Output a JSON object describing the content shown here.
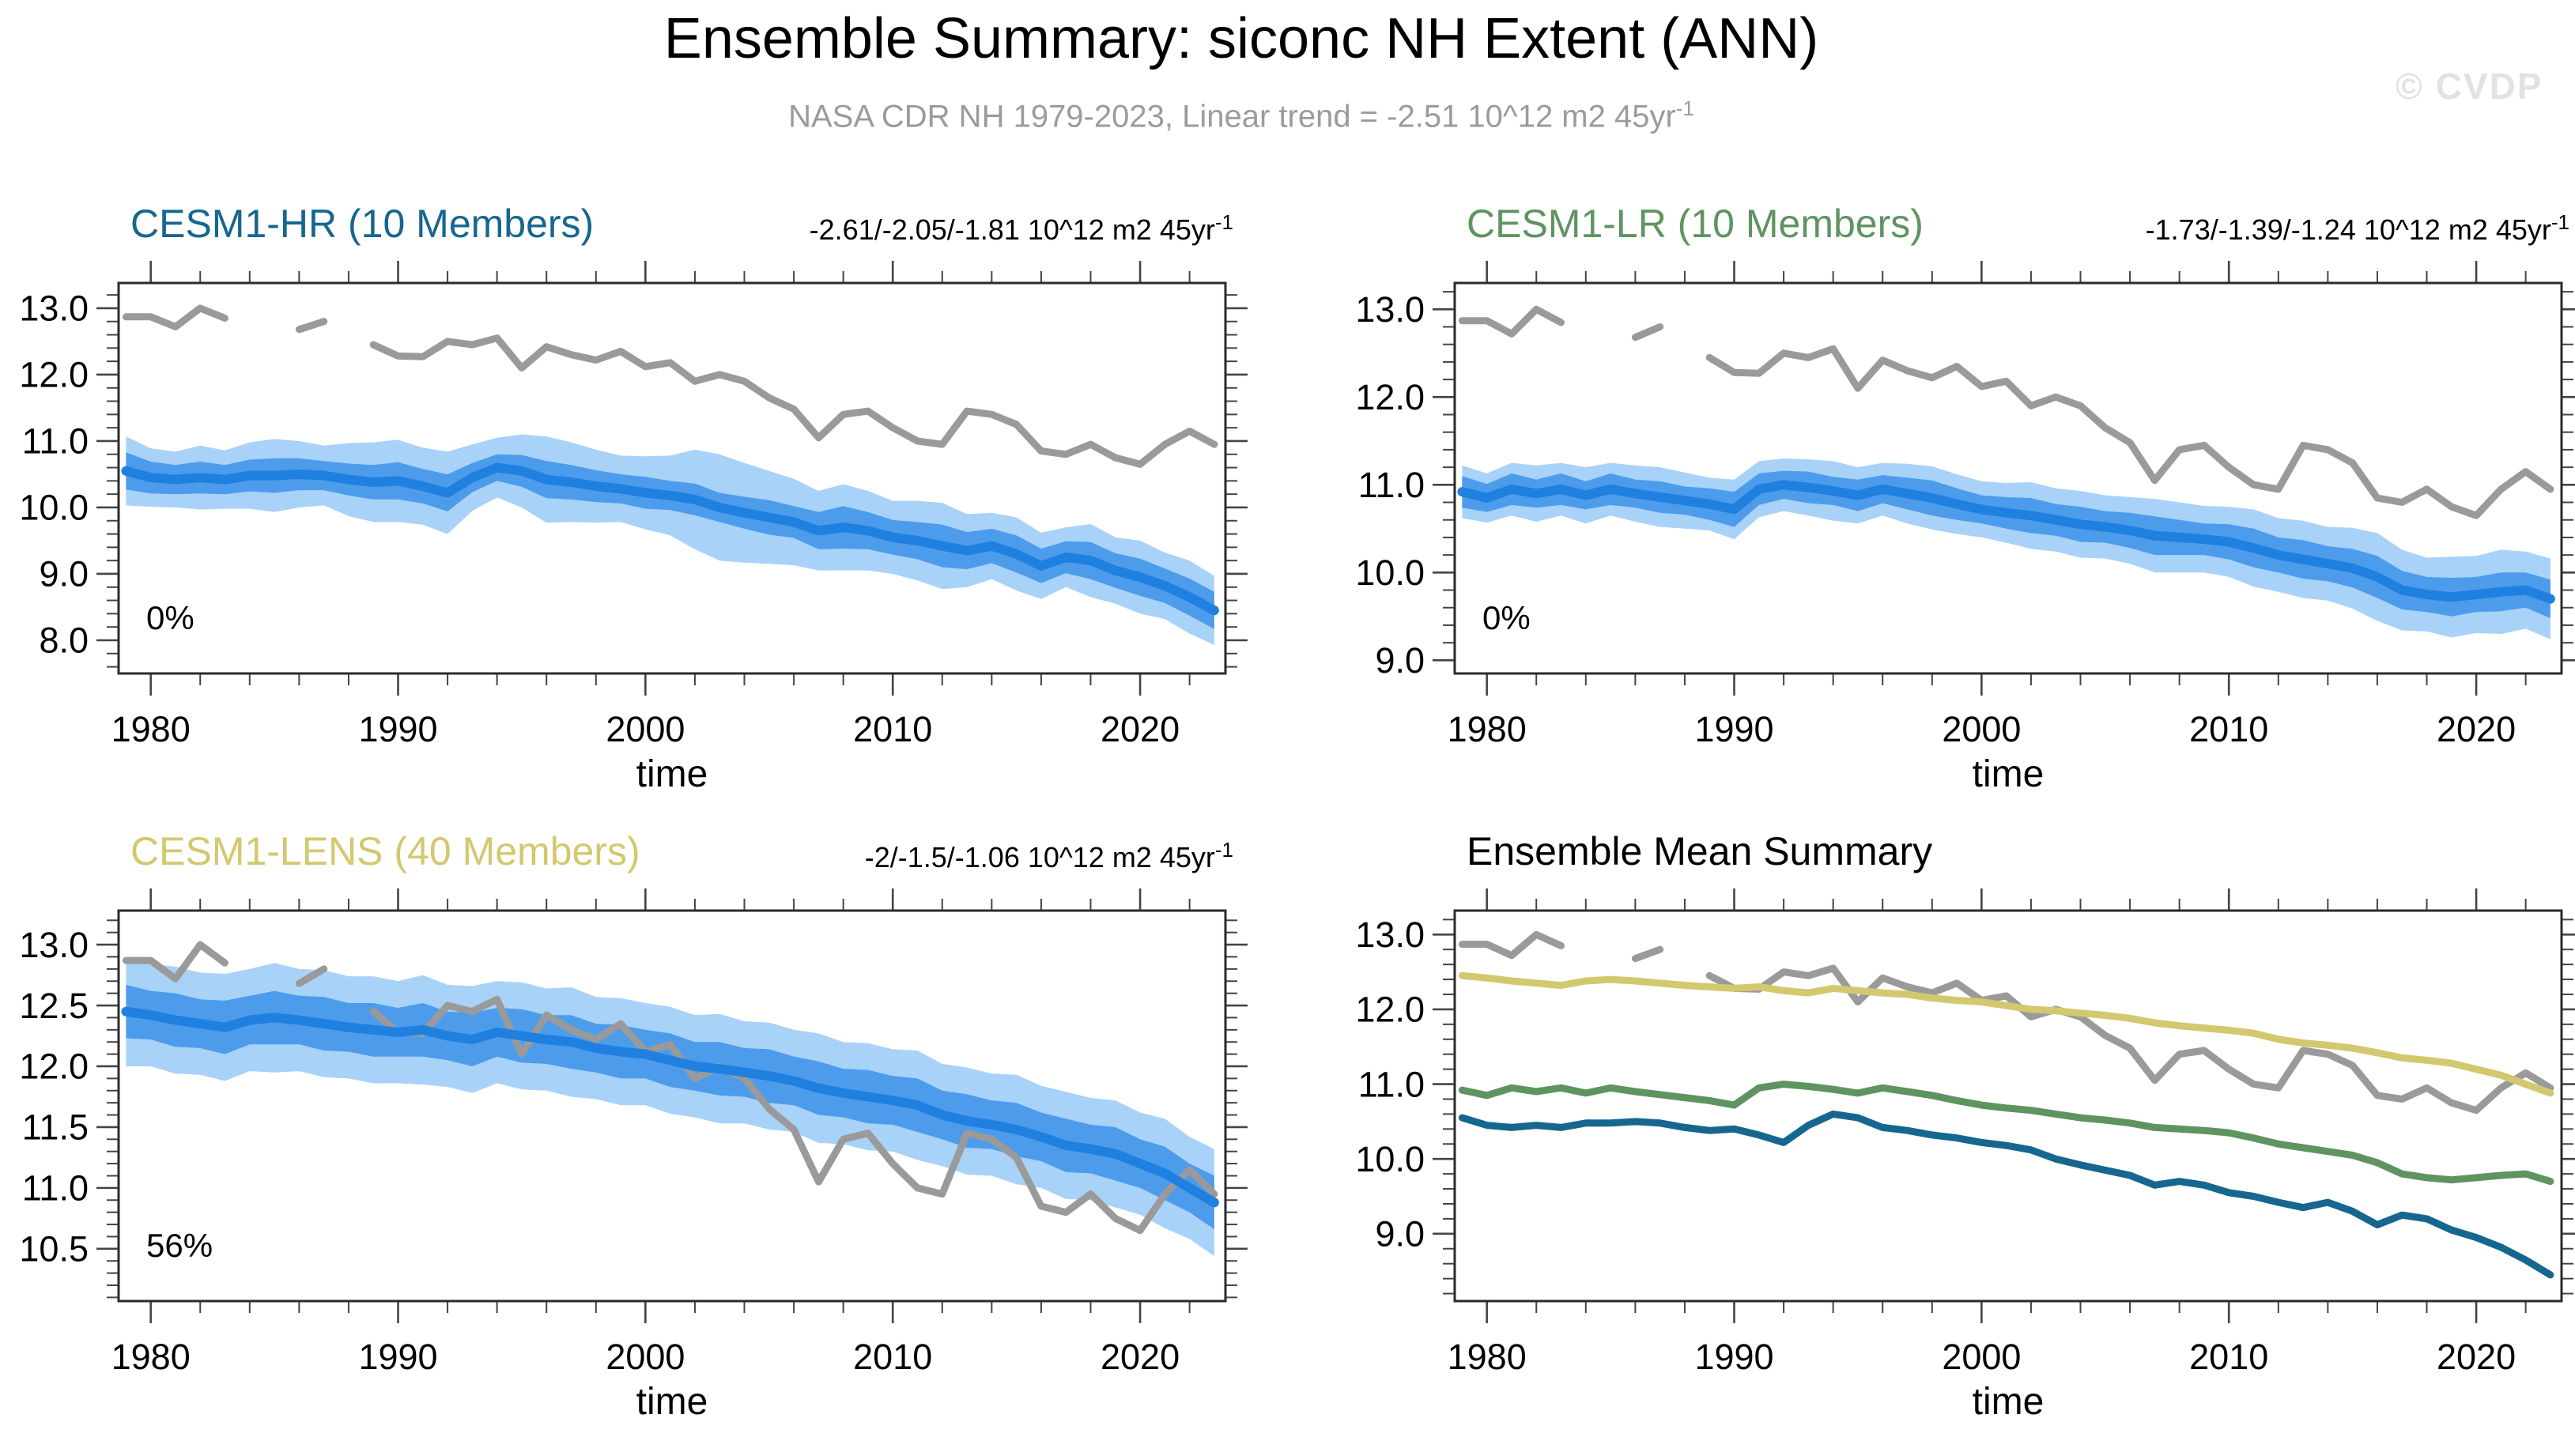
{
  "page": {
    "title": "Ensemble Summary: siconc NH Extent (ANN)",
    "subtitle": "NASA CDR NH 1979-2023, Linear trend = -2.51 10^12 m2 45yr",
    "subtitle_sup": "-1",
    "watermark": "© CVDP"
  },
  "colors": {
    "obs_gray": "#9a9a9a",
    "hr_teal": "#16678f",
    "lr_green": "#5e9460",
    "lens_yellow": "#d3c86f",
    "mean_blue": "#1f80e0",
    "inner_band": "#4d9ceb",
    "outer_band": "#a9d2f8",
    "subtitle_gray": "#9b9b9b",
    "watermark_gray": "#e2e2e2"
  },
  "chart_data": [
    {
      "type": "line",
      "id": "cesm1-hr",
      "title": "CESM1-HR (10 Members)",
      "title_color": "#16678f",
      "trend": "-2.61/-2.05/-1.81 10^12 m2 45yr",
      "trend_sup": "-1",
      "annotation": "0%",
      "xlabel": "time",
      "xlim": [
        1978.7,
        2023.45
      ],
      "ylim": [
        7.5,
        13.38
      ],
      "xticks": [
        1980,
        1990,
        2000,
        2010,
        2020
      ],
      "xtick_labels": [
        "1980",
        "1990",
        "2000",
        "2010",
        "2020"
      ],
      "xminor_step": 2,
      "yticks": [
        8,
        9,
        10,
        11,
        12,
        13
      ],
      "ytick_labels": [
        "8.0",
        "9.0",
        "10.0",
        "11.0",
        "12.0",
        "13.0"
      ],
      "yminor_step": 0.2,
      "years": [
        1979,
        1980,
        1981,
        1982,
        1983,
        1984,
        1985,
        1986,
        1987,
        1988,
        1989,
        1990,
        1991,
        1992,
        1993,
        1994,
        1995,
        1996,
        1997,
        1998,
        1999,
        2000,
        2001,
        2002,
        2003,
        2004,
        2005,
        2006,
        2007,
        2008,
        2009,
        2010,
        2011,
        2012,
        2013,
        2014,
        2015,
        2016,
        2017,
        2018,
        2019,
        2020,
        2021,
        2022,
        2023
      ],
      "obs": [
        12.87,
        12.87,
        12.72,
        13.0,
        12.85,
        null,
        null,
        12.68,
        12.8,
        null,
        12.45,
        12.28,
        12.27,
        12.5,
        12.45,
        12.55,
        12.1,
        12.42,
        12.3,
        12.22,
        12.35,
        12.12,
        12.18,
        11.9,
        12.0,
        11.9,
        11.65,
        11.48,
        11.05,
        11.4,
        11.45,
        11.2,
        11.0,
        10.95,
        11.45,
        11.4,
        11.25,
        10.85,
        10.8,
        10.95,
        10.75,
        10.65,
        10.95,
        11.15,
        10.95
      ],
      "mean": [
        10.55,
        10.45,
        10.42,
        10.45,
        10.42,
        10.48,
        10.48,
        10.5,
        10.48,
        10.42,
        10.38,
        10.4,
        10.32,
        10.22,
        10.45,
        10.6,
        10.55,
        10.42,
        10.38,
        10.32,
        10.28,
        10.22,
        10.18,
        10.12,
        10.0,
        9.92,
        9.85,
        9.78,
        9.65,
        9.7,
        9.65,
        9.55,
        9.5,
        9.42,
        9.35,
        9.42,
        9.3,
        9.12,
        9.25,
        9.2,
        9.05,
        8.95,
        8.82,
        8.65,
        8.45
      ],
      "inner_half": [
        0.28,
        0.24,
        0.22,
        0.24,
        0.22,
        0.24,
        0.26,
        0.24,
        0.22,
        0.24,
        0.26,
        0.28,
        0.26,
        0.28,
        0.22,
        0.2,
        0.24,
        0.28,
        0.26,
        0.24,
        0.22,
        0.24,
        0.22,
        0.24,
        0.22,
        0.24,
        0.26,
        0.24,
        0.28,
        0.32,
        0.28,
        0.26,
        0.28,
        0.32,
        0.28,
        0.26,
        0.28,
        0.26,
        0.24,
        0.28,
        0.26,
        0.28,
        0.26,
        0.28,
        0.28
      ],
      "outer_half": [
        0.52,
        0.44,
        0.42,
        0.48,
        0.44,
        0.5,
        0.55,
        0.5,
        0.45,
        0.55,
        0.6,
        0.62,
        0.58,
        0.62,
        0.5,
        0.45,
        0.55,
        0.65,
        0.6,
        0.55,
        0.5,
        0.55,
        0.6,
        0.75,
        0.8,
        0.75,
        0.7,
        0.65,
        0.6,
        0.65,
        0.6,
        0.55,
        0.6,
        0.65,
        0.55,
        0.5,
        0.55,
        0.5,
        0.45,
        0.55,
        0.5,
        0.55,
        0.5,
        0.55,
        0.52
      ]
    },
    {
      "type": "line",
      "id": "cesm1-lr",
      "title": "CESM1-LR (10 Members)",
      "title_color": "#5e9460",
      "trend": "-1.73/-1.39/-1.24 10^12 m2 45yr",
      "trend_sup": "-1",
      "annotation": "0%",
      "xlabel": "time",
      "xlim": [
        1978.7,
        2023.45
      ],
      "ylim": [
        8.85,
        13.3
      ],
      "xticks": [
        1980,
        1990,
        2000,
        2010,
        2020
      ],
      "xtick_labels": [
        "1980",
        "1990",
        "2000",
        "2010",
        "2020"
      ],
      "xminor_step": 2,
      "yticks": [
        9,
        10,
        11,
        12,
        13
      ],
      "ytick_labels": [
        "9.0",
        "10.0",
        "11.0",
        "12.0",
        "13.0"
      ],
      "yminor_step": 0.2,
      "years": [
        1979,
        1980,
        1981,
        1982,
        1983,
        1984,
        1985,
        1986,
        1987,
        1988,
        1989,
        1990,
        1991,
        1992,
        1993,
        1994,
        1995,
        1996,
        1997,
        1998,
        1999,
        2000,
        2001,
        2002,
        2003,
        2004,
        2005,
        2006,
        2007,
        2008,
        2009,
        2010,
        2011,
        2012,
        2013,
        2014,
        2015,
        2016,
        2017,
        2018,
        2019,
        2020,
        2021,
        2022,
        2023
      ],
      "obs": [
        12.87,
        12.87,
        12.72,
        13.0,
        12.85,
        null,
        null,
        12.68,
        12.8,
        null,
        12.45,
        12.28,
        12.27,
        12.5,
        12.45,
        12.55,
        12.1,
        12.42,
        12.3,
        12.22,
        12.35,
        12.12,
        12.18,
        11.9,
        12.0,
        11.9,
        11.65,
        11.48,
        11.05,
        11.4,
        11.45,
        11.2,
        11.0,
        10.95,
        11.45,
        11.4,
        11.25,
        10.85,
        10.8,
        10.95,
        10.75,
        10.65,
        10.95,
        11.15,
        10.95
      ],
      "mean": [
        10.92,
        10.85,
        10.95,
        10.9,
        10.95,
        10.88,
        10.95,
        10.9,
        10.86,
        10.82,
        10.78,
        10.72,
        10.95,
        11.0,
        10.97,
        10.93,
        10.88,
        10.95,
        10.9,
        10.85,
        10.78,
        10.72,
        10.68,
        10.65,
        10.6,
        10.55,
        10.52,
        10.48,
        10.42,
        10.4,
        10.38,
        10.35,
        10.28,
        10.2,
        10.15,
        10.1,
        10.05,
        9.95,
        9.8,
        9.75,
        9.72,
        9.75,
        9.78,
        9.8,
        9.7
      ],
      "inner_half": [
        0.18,
        0.16,
        0.18,
        0.16,
        0.18,
        0.16,
        0.18,
        0.16,
        0.18,
        0.16,
        0.18,
        0.2,
        0.18,
        0.16,
        0.18,
        0.16,
        0.18,
        0.16,
        0.18,
        0.2,
        0.18,
        0.16,
        0.18,
        0.2,
        0.18,
        0.2,
        0.18,
        0.2,
        0.22,
        0.2,
        0.18,
        0.2,
        0.22,
        0.2,
        0.22,
        0.2,
        0.22,
        0.24,
        0.22,
        0.2,
        0.22,
        0.2,
        0.22,
        0.2,
        0.22
      ],
      "outer_half": [
        0.3,
        0.28,
        0.3,
        0.32,
        0.3,
        0.32,
        0.3,
        0.32,
        0.34,
        0.32,
        0.3,
        0.34,
        0.32,
        0.3,
        0.32,
        0.34,
        0.32,
        0.3,
        0.34,
        0.36,
        0.34,
        0.32,
        0.34,
        0.38,
        0.36,
        0.38,
        0.36,
        0.38,
        0.42,
        0.4,
        0.38,
        0.4,
        0.44,
        0.42,
        0.44,
        0.42,
        0.46,
        0.5,
        0.46,
        0.42,
        0.46,
        0.44,
        0.48,
        0.44,
        0.46
      ]
    },
    {
      "type": "line",
      "id": "cesm1-lens",
      "title": "CESM1-LENS (40 Members)",
      "title_color": "#d3c86f",
      "trend": "-2/-1.5/-1.06 10^12 m2 45yr",
      "trend_sup": "-1",
      "annotation": "56%",
      "xlabel": "time",
      "xlim": [
        1978.7,
        2023.45
      ],
      "ylim": [
        10.07,
        13.28
      ],
      "xticks": [
        1980,
        1990,
        2000,
        2010,
        2020
      ],
      "xtick_labels": [
        "1980",
        "1990",
        "2000",
        "2010",
        "2020"
      ],
      "xminor_step": 2,
      "yticks": [
        10.5,
        11.0,
        11.5,
        12.0,
        12.5,
        13.0
      ],
      "ytick_labels": [
        "10.5",
        "11.0",
        "11.5",
        "12.0",
        "12.5",
        "13.0"
      ],
      "yminor_step": 0.1,
      "years": [
        1979,
        1980,
        1981,
        1982,
        1983,
        1984,
        1985,
        1986,
        1987,
        1988,
        1989,
        1990,
        1991,
        1992,
        1993,
        1994,
        1995,
        1996,
        1997,
        1998,
        1999,
        2000,
        2001,
        2002,
        2003,
        2004,
        2005,
        2006,
        2007,
        2008,
        2009,
        2010,
        2011,
        2012,
        2013,
        2014,
        2015,
        2016,
        2017,
        2018,
        2019,
        2020,
        2021,
        2022,
        2023
      ],
      "obs": [
        12.87,
        12.87,
        12.72,
        13.0,
        12.85,
        null,
        null,
        12.68,
        12.8,
        null,
        12.45,
        12.28,
        12.27,
        12.5,
        12.45,
        12.55,
        12.1,
        12.42,
        12.3,
        12.22,
        12.35,
        12.12,
        12.18,
        11.9,
        12.0,
        11.9,
        11.65,
        11.48,
        11.05,
        11.4,
        11.45,
        11.2,
        11.0,
        10.95,
        11.45,
        11.4,
        11.25,
        10.85,
        10.8,
        10.95,
        10.75,
        10.65,
        10.95,
        11.15,
        10.95
      ],
      "mean": [
        12.45,
        12.42,
        12.38,
        12.35,
        12.32,
        12.38,
        12.4,
        12.38,
        12.35,
        12.32,
        12.3,
        12.28,
        12.3,
        12.25,
        12.22,
        12.28,
        12.25,
        12.22,
        12.2,
        12.15,
        12.12,
        12.1,
        12.05,
        12.0,
        11.98,
        11.95,
        11.92,
        11.88,
        11.82,
        11.78,
        11.75,
        11.72,
        11.68,
        11.6,
        11.55,
        11.52,
        11.48,
        11.42,
        11.35,
        11.32,
        11.28,
        11.2,
        11.12,
        11.0,
        10.88
      ],
      "inner_half": [
        0.22,
        0.2,
        0.22,
        0.2,
        0.22,
        0.2,
        0.22,
        0.2,
        0.22,
        0.2,
        0.22,
        0.2,
        0.22,
        0.2,
        0.22,
        0.2,
        0.22,
        0.2,
        0.22,
        0.2,
        0.22,
        0.2,
        0.22,
        0.2,
        0.22,
        0.2,
        0.22,
        0.2,
        0.22,
        0.2,
        0.22,
        0.2,
        0.22,
        0.2,
        0.22,
        0.2,
        0.22,
        0.2,
        0.22,
        0.2,
        0.22,
        0.2,
        0.22,
        0.2,
        0.22
      ],
      "outer_half": [
        0.45,
        0.42,
        0.44,
        0.42,
        0.44,
        0.42,
        0.45,
        0.42,
        0.44,
        0.42,
        0.44,
        0.42,
        0.45,
        0.42,
        0.44,
        0.42,
        0.44,
        0.42,
        0.45,
        0.42,
        0.44,
        0.42,
        0.44,
        0.42,
        0.45,
        0.42,
        0.44,
        0.42,
        0.45,
        0.42,
        0.44,
        0.42,
        0.45,
        0.42,
        0.44,
        0.42,
        0.45,
        0.42,
        0.44,
        0.42,
        0.44,
        0.42,
        0.45,
        0.42,
        0.44
      ]
    },
    {
      "type": "line",
      "id": "ensemble-mean-summary",
      "title": "Ensemble Mean Summary",
      "title_color": "#000000",
      "xlabel": "time",
      "xlim": [
        1978.7,
        2023.45
      ],
      "ylim": [
        8.1,
        13.32
      ],
      "xticks": [
        1980,
        1990,
        2000,
        2010,
        2020
      ],
      "xtick_labels": [
        "1980",
        "1990",
        "2000",
        "2010",
        "2020"
      ],
      "xminor_step": 2,
      "yticks": [
        9,
        10,
        11,
        12,
        13
      ],
      "ytick_labels": [
        "9.0",
        "10.0",
        "11.0",
        "12.0",
        "13.0"
      ],
      "yminor_step": 0.2,
      "years": [
        1979,
        1980,
        1981,
        1982,
        1983,
        1984,
        1985,
        1986,
        1987,
        1988,
        1989,
        1990,
        1991,
        1992,
        1993,
        1994,
        1995,
        1996,
        1997,
        1998,
        1999,
        2000,
        2001,
        2002,
        2003,
        2004,
        2005,
        2006,
        2007,
        2008,
        2009,
        2010,
        2011,
        2012,
        2013,
        2014,
        2015,
        2016,
        2017,
        2018,
        2019,
        2020,
        2021,
        2022,
        2023
      ],
      "series": [
        {
          "name": "NASA CDR",
          "color": "#9a9a9a",
          "values": [
            12.87,
            12.87,
            12.72,
            13.0,
            12.85,
            null,
            null,
            12.68,
            12.8,
            null,
            12.45,
            12.28,
            12.27,
            12.5,
            12.45,
            12.55,
            12.1,
            12.42,
            12.3,
            12.22,
            12.35,
            12.12,
            12.18,
            11.9,
            12.0,
            11.9,
            11.65,
            11.48,
            11.05,
            11.4,
            11.45,
            11.2,
            11.0,
            10.95,
            11.45,
            11.4,
            11.25,
            10.85,
            10.8,
            10.95,
            10.75,
            10.65,
            10.95,
            11.15,
            10.95
          ]
        },
        {
          "name": "CESM1-LENS",
          "color": "#d3c86f",
          "values": [
            12.45,
            12.42,
            12.38,
            12.35,
            12.32,
            12.38,
            12.4,
            12.38,
            12.35,
            12.32,
            12.3,
            12.28,
            12.3,
            12.25,
            12.22,
            12.28,
            12.25,
            12.22,
            12.2,
            12.15,
            12.12,
            12.1,
            12.05,
            12.0,
            11.98,
            11.95,
            11.92,
            11.88,
            11.82,
            11.78,
            11.75,
            11.72,
            11.68,
            11.6,
            11.55,
            11.52,
            11.48,
            11.42,
            11.35,
            11.32,
            11.28,
            11.2,
            11.12,
            11.0,
            10.88
          ]
        },
        {
          "name": "CESM1-LR",
          "color": "#5e9460",
          "values": [
            10.92,
            10.85,
            10.95,
            10.9,
            10.95,
            10.88,
            10.95,
            10.9,
            10.86,
            10.82,
            10.78,
            10.72,
            10.95,
            11.0,
            10.97,
            10.93,
            10.88,
            10.95,
            10.9,
            10.85,
            10.78,
            10.72,
            10.68,
            10.65,
            10.6,
            10.55,
            10.52,
            10.48,
            10.42,
            10.4,
            10.38,
            10.35,
            10.28,
            10.2,
            10.15,
            10.1,
            10.05,
            9.95,
            9.8,
            9.75,
            9.72,
            9.75,
            9.78,
            9.8,
            9.7
          ]
        },
        {
          "name": "CESM1-HR",
          "color": "#16678f",
          "values": [
            10.55,
            10.45,
            10.42,
            10.45,
            10.42,
            10.48,
            10.48,
            10.5,
            10.48,
            10.42,
            10.38,
            10.4,
            10.32,
            10.22,
            10.45,
            10.6,
            10.55,
            10.42,
            10.38,
            10.32,
            10.28,
            10.22,
            10.18,
            10.12,
            10.0,
            9.92,
            9.85,
            9.78,
            9.65,
            9.7,
            9.65,
            9.55,
            9.5,
            9.42,
            9.35,
            9.42,
            9.3,
            9.12,
            9.25,
            9.2,
            9.05,
            8.95,
            8.82,
            8.65,
            8.45
          ]
        }
      ]
    }
  ]
}
